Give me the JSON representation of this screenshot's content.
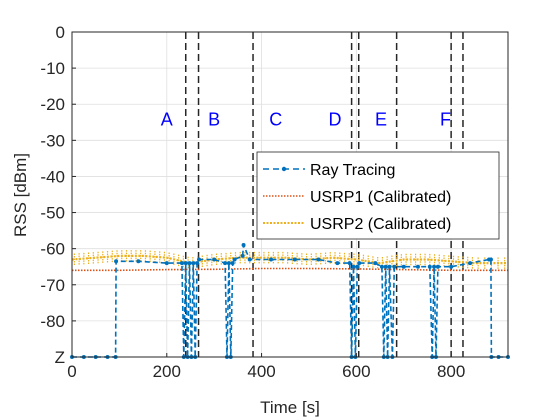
{
  "chart_data": {
    "type": "line",
    "xlabel": "Time [s]",
    "ylabel": "RSS [dBm]",
    "xlim": [
      0,
      920
    ],
    "ylim": [
      -90,
      0
    ],
    "xticks": [
      0,
      200,
      400,
      600,
      800
    ],
    "yticks": [
      0,
      -10,
      -20,
      -30,
      -40,
      -50,
      -60,
      -70,
      -80,
      -90
    ],
    "ytick_labels": [
      "0",
      "-10",
      "-20",
      "-30",
      "-40",
      "-50",
      "-60",
      "-70",
      "-80",
      "Z"
    ],
    "grid": true,
    "legend_position": "right",
    "region_boundaries": [
      240,
      267,
      382,
      590,
      605,
      685,
      800,
      825
    ],
    "region_labels": [
      {
        "text": "A",
        "x": 200
      },
      {
        "text": "B",
        "x": 300
      },
      {
        "text": "C",
        "x": 430
      },
      {
        "text": "D",
        "x": 555
      },
      {
        "text": "E",
        "x": 652
      },
      {
        "text": "F",
        "x": 788
      }
    ],
    "region_label_y": -24,
    "series": [
      {
        "name": "Ray Tracing",
        "color": "#0072bd",
        "style": "dash-marker",
        "x": [
          0,
          25,
          50,
          75,
          92,
          93,
          140,
          200,
          232,
          236,
          240,
          244,
          248,
          252,
          256,
          260,
          264,
          268,
          300,
          323,
          327,
          331,
          335,
          339,
          343,
          360,
          362,
          375,
          420,
          470,
          520,
          560,
          586,
          590,
          594,
          598,
          602,
          606,
          640,
          654,
          658,
          662,
          666,
          670,
          676,
          680,
          700,
          730,
          755,
          760,
          764,
          768,
          772,
          800,
          840,
          880,
          884,
          885,
          900,
          920
        ],
        "y": [
          -90,
          -90,
          -90,
          -90,
          -90,
          -63.5,
          -63.5,
          -64,
          -64,
          -90,
          -64,
          -90,
          -64,
          -90,
          -64,
          -90,
          -64,
          -63,
          -63,
          -64,
          -90,
          -64,
          -90,
          -64,
          -63,
          -62,
          -59,
          -63,
          -63,
          -63,
          -63,
          -64,
          -64,
          -90,
          -65,
          -90,
          -65,
          -64,
          -64,
          -65,
          -90,
          -65,
          -90,
          -65,
          -90,
          -65,
          -65,
          -65,
          -65,
          -90,
          -65,
          -90,
          -65,
          -65,
          -64,
          -63,
          -63,
          -90,
          -90,
          -90
        ]
      },
      {
        "name": "USRP1 (Calibrated)",
        "color": "#d95319",
        "style": "dotted",
        "x": [
          0,
          100,
          200,
          300,
          400,
          500,
          600,
          700,
          800,
          920
        ],
        "y": [
          -66,
          -66,
          -65.8,
          -65.7,
          -65.5,
          -65.5,
          -65.6,
          -65.8,
          -66,
          -66
        ]
      },
      {
        "name": "USRP2 (Calibrated)",
        "color": "#edb120",
        "style": "dotted-noisy",
        "x": [
          0,
          50,
          100,
          150,
          200,
          250,
          300,
          350,
          400,
          450,
          500,
          550,
          600,
          650,
          700,
          750,
          800,
          850,
          920
        ],
        "y": [
          -63,
          -62.5,
          -62,
          -62,
          -62.5,
          -64,
          -63,
          -62.5,
          -62.5,
          -62.5,
          -63,
          -62.5,
          -63,
          -64,
          -63,
          -63,
          -63.5,
          -64,
          -64
        ]
      }
    ]
  }
}
